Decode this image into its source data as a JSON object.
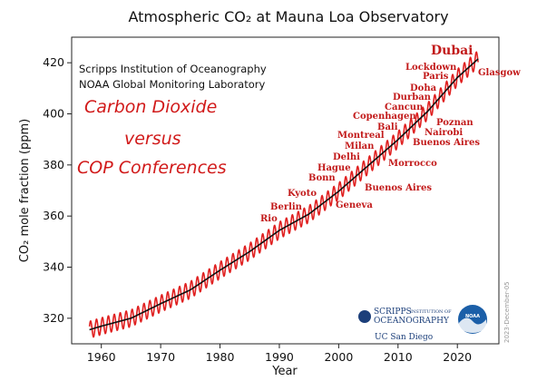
{
  "chart_data": {
    "type": "line",
    "title": "Atmospheric CO₂ at Mauna Loa Observatory",
    "xlabel": "Year",
    "ylabel": "CO₂ mole fraction (ppm)",
    "xlim": [
      1955,
      2027
    ],
    "ylim": [
      310,
      430
    ],
    "xticks": [
      1960,
      1970,
      1980,
      1990,
      2000,
      2010,
      2020
    ],
    "yticks": [
      320,
      340,
      360,
      380,
      400,
      420
    ],
    "grid": false,
    "series": [
      {
        "color": "#8b0000",
        "trend": {
          "x": [
            1958,
            1960,
            1965,
            1970,
            1975,
            1980,
            1985,
            1990,
            1995,
            2000,
            2005,
            2010,
            2015,
            2020,
            2023.5
          ],
          "y": [
            315.5,
            316.9,
            320.0,
            325.7,
            331.1,
            338.8,
            346.1,
            354.4,
            360.8,
            369.7,
            379.8,
            389.9,
            401.0,
            414.2,
            421.5
          ]
        },
        "seasonal_amplitude_ppm": 3.3
      }
    ]
  },
  "sources": [
    "Scripps Institution of Oceanography",
    "NOAA Global Monitoring Laboratory"
  ],
  "overlay_title": [
    "Carbon Dioxide",
    "versus",
    "COP Conferences"
  ],
  "conferences": [
    {
      "label": "Rio",
      "year": 1992
    },
    {
      "label": "Berlin",
      "year": 1995
    },
    {
      "label": "Kyoto",
      "year": 1997
    },
    {
      "label": "Geneva",
      "year": 1996
    },
    {
      "label": "Bonn",
      "year": 1999
    },
    {
      "label": "Hague",
      "year": 2000
    },
    {
      "label": "Delhi",
      "year": 2002
    },
    {
      "label": "Milan",
      "year": 2003
    },
    {
      "label": "Buenos Aires",
      "year": 2004
    },
    {
      "label": "Montreal",
      "year": 2005
    },
    {
      "label": "Morrocco",
      "year": 2001
    },
    {
      "label": "Bali",
      "year": 2007
    },
    {
      "label": "Copenhagen",
      "year": 2009
    },
    {
      "label": "Cancun",
      "year": 2010
    },
    {
      "label": "Durban",
      "year": 2011
    },
    {
      "label": "Doha",
      "year": 2012
    },
    {
      "label": "Poznan",
      "year": 2008
    },
    {
      "label": "Nairobi",
      "year": 2006
    },
    {
      "label": "Buenos Aires",
      "year": 2004
    },
    {
      "label": "Paris",
      "year": 2015
    },
    {
      "label": "Lockdown",
      "year": 2020
    },
    {
      "label": "Glasgow",
      "year": 2021
    },
    {
      "label": "Dubai",
      "year": 2023
    }
  ],
  "logos": {
    "scripps_line1": "SCRIPPS",
    "scripps_line2": "OCEANOGRAPHY",
    "scripps_small": "INSTITUTION OF",
    "ucsd": "UC San Diego",
    "noaa": "NOAA"
  },
  "date_stamp": "2023-December-05"
}
